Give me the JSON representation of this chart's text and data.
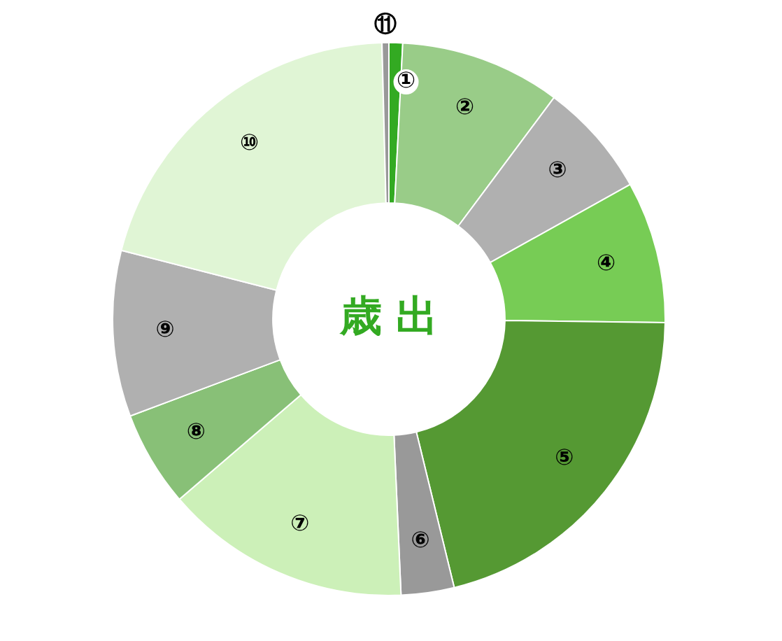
{
  "chart_data": {
    "type": "donut",
    "title": "歳 出",
    "categories": [
      "①",
      "②",
      "③",
      "④",
      "⑤",
      "⑥",
      "⑦",
      "⑧",
      "⑨",
      "⑩",
      "⑪"
    ],
    "values": [
      0.8,
      9.4,
      6.7,
      8.3,
      21.0,
      3.1,
      14.4,
      5.6,
      9.7,
      20.6,
      0.4
    ],
    "colors": [
      "#33aa22",
      "#99cc88",
      "#b0b0b0",
      "#77cc55",
      "#559933",
      "#999999",
      "#ccf0b8",
      "#88c077",
      "#b0b0b0",
      "#e0f5d5",
      "#999999"
    ],
    "legend": false
  }
}
